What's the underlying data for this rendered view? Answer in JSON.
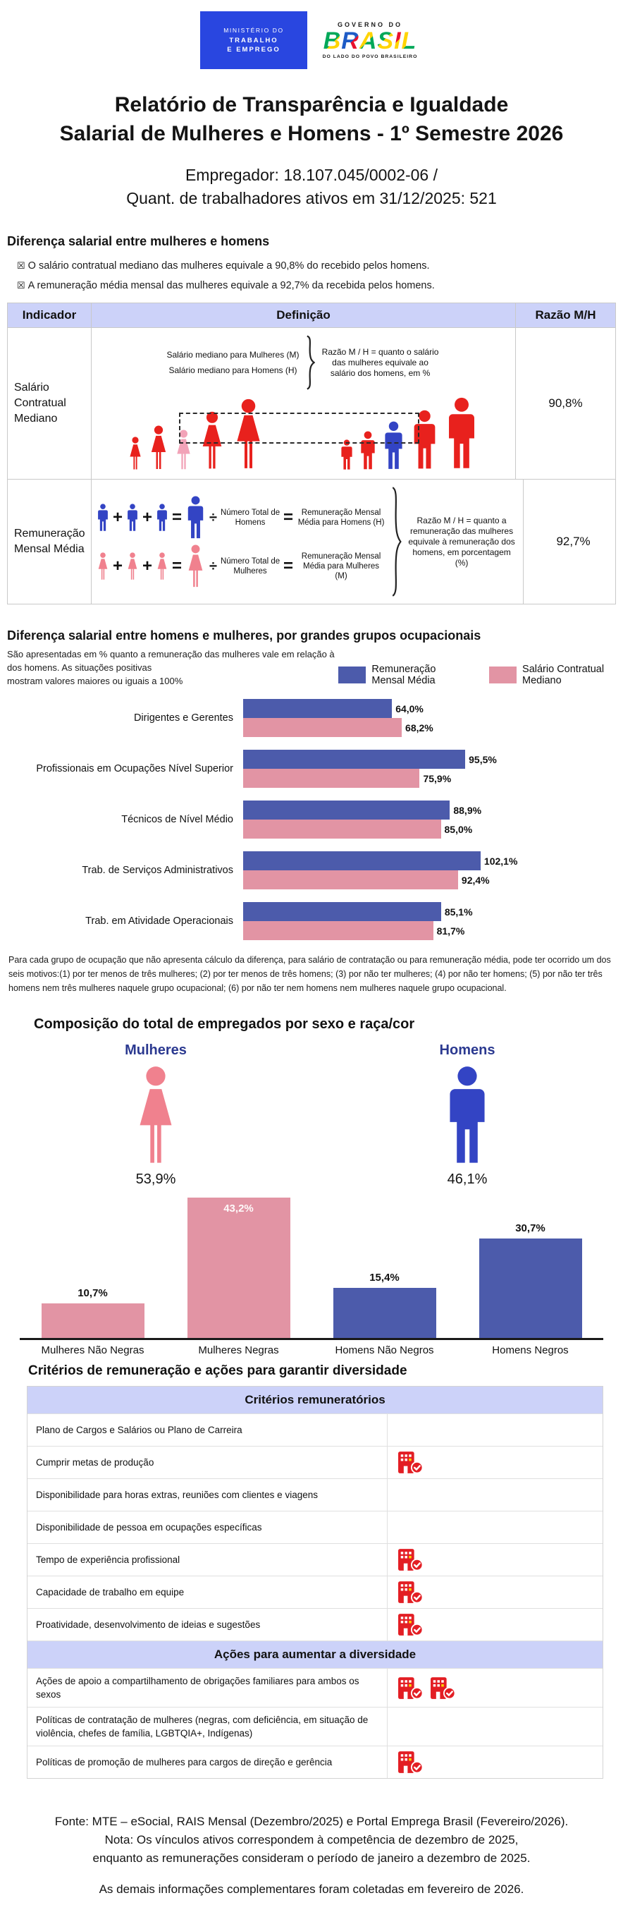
{
  "header": {
    "ministry_logo": {
      "line1": "MINISTÉRIO DO",
      "line2": "TRABALHO",
      "line3": "E EMPREGO"
    },
    "gov_logo": {
      "top": "GOVERNO DO",
      "brand": "BRASIL",
      "bottom": "DO LADO DO POVO BRASILEIRO"
    }
  },
  "title_line1": "Relatório de Transparência e Igualdade",
  "title_line2": "Salarial de Mulheres e Homens - 1º Semestre 2026",
  "employer_line1": "Empregador: 18.107.045/0002-06 /",
  "employer_line2": "Quant. de trabalhadores ativos em 31/12/2025: 521",
  "gap_section": {
    "heading": "Diferença salarial entre mulheres e homens",
    "bullet_glyph": "☒",
    "bullet1": "O salário contratual mediano das mulheres equivale a 90,8% do recebido pelos homens.",
    "bullet2": "A remuneração média mensal das mulheres equivale a 92,7% da recebida pelos homens."
  },
  "indicator_table": {
    "col_indicator": "Indicador",
    "col_definition": "Definição",
    "col_ratio": "Razão M/H",
    "row1": {
      "indicator": "Salário Contratual Mediano",
      "women_line": "Salário mediano para Mulheres (M)",
      "men_line": "Salário mediano para Homens (H)",
      "explanation": "Razão M / H = quanto o salário das mulheres equivale ao salário dos homens, em %",
      "ratio": "90,8%"
    },
    "row2": {
      "indicator": "Remuneração Mensal Média",
      "plus": "+",
      "equals": "=",
      "divide": "÷",
      "men_divisor": "Número Total de Homens",
      "men_result": "Remuneração Mensal Média para Homens (H)",
      "women_divisor": "Número Total de Mulheres",
      "women_result": "Remuneração Mensal Média para Mulheres (M)",
      "explanation": "Razão M / H = quanto a remuneração das mulheres equivale à remuneração dos homens, em porcentagem (%)",
      "ratio": "92,7%"
    }
  },
  "occupational_section": {
    "heading": "Diferença salarial entre homens e mulheres, por grandes grupos ocupacionais",
    "description_line1": "São apresentadas em % quanto a remuneração das mulheres vale em relação à dos homens. As situações positivas",
    "description_line2": "mostram valores maiores ou iguais a 100%",
    "footnote": "Para cada grupo de ocupação que não apresenta cálculo da diferença, para salário de contratação ou para remuneração média, pode ter ocorrido um dos seis motivos:(1) por ter menos de três mulheres; (2) por ter menos de três homens; (3) por não ter mulheres; (4) por não ter homens; (5) por não ter três homens nem três mulheres naquele grupo ocupacional; (6) por não ter nem homens nem mulheres naquele grupo ocupacional."
  },
  "composition_section": {
    "heading": "Composição do total de empregados por sexo e raça/cor",
    "women_label": "Mulheres",
    "women_pct": "53,9%",
    "men_label": "Homens",
    "men_pct": "46,1%"
  },
  "criteria_section": {
    "heading": "Critérios de remuneração e ações para garantir diversidade",
    "remuneration_header": "Critérios remuneratórios",
    "remuneration_rows": [
      {
        "label": "Plano de Cargos e Salários ou Plano de Carreira",
        "icons": 0
      },
      {
        "label": "Cumprir metas de produção",
        "icons": 1
      },
      {
        "label": "Disponibilidade para horas extras, reuniões com clientes e viagens",
        "icons": 0
      },
      {
        "label": "Disponibilidade de pessoa em ocupações específicas",
        "icons": 0
      },
      {
        "label": "Tempo de experiência profissional",
        "icons": 1
      },
      {
        "label": "Capacidade de trabalho em equipe",
        "icons": 1
      },
      {
        "label": "Proatividade, desenvolvimento de ideias e sugestões",
        "icons": 1
      }
    ],
    "diversity_header": "Ações para aumentar a diversidade",
    "diversity_rows": [
      {
        "label": "Ações de apoio a compartilhamento de obrigações familiares para ambos os sexos",
        "icons": 2
      },
      {
        "label": "Políticas de contratação de mulheres (negras, com deficiência, em situação de violência, chefes de família, LGBTQIA+, Indígenas)",
        "icons": 0
      },
      {
        "label": "Políticas de promoção de mulheres para cargos de direção e gerência",
        "icons": 1
      }
    ]
  },
  "footer": {
    "line1": "Fonte: MTE – eSocial, RAIS Mensal (Dezembro/2025) e Portal Emprega Brasil (Fevereiro/2026).",
    "line2": "Nota: Os vínculos ativos correspondem à competência de dezembro de 2025,",
    "line3": "enquanto as remunerações consideram o período de janeiro a dezembro de 2025.",
    "line4": "As demais informações complementares foram coletadas em fevereiro de 2026."
  },
  "colors": {
    "blue_bar": "#4C5BAB",
    "pink_bar": "#E294A4",
    "lavender_header": "#CCD2F9",
    "navy_label": "#2B3990",
    "red_icon": "#E31E24",
    "figure_red": "#E8211D",
    "median_pink": "#F2A3B8",
    "woman_pink": "#F0818E",
    "man_blue": "#3344C4",
    "ministry_blue": "#2946E0"
  },
  "chart_data": [
    {
      "type": "bar",
      "orientation": "horizontal",
      "title": "Diferença salarial entre homens e mulheres, por grandes grupos ocupacionais",
      "categories": [
        "Dirigentes e Gerentes",
        "Profissionais em Ocupações Nível Superior",
        "Técnicos de Nível Médio",
        "Trab. de Serviços Administrativos",
        "Trab. em Atividade Operacionais"
      ],
      "series": [
        {
          "name": "Remuneração Mensal Média",
          "color": "#4C5BAB",
          "values": [
            64.0,
            95.5,
            88.9,
            102.1,
            85.1
          ],
          "labels": [
            "64,0%",
            "95,5%",
            "88,9%",
            "102,1%",
            "85,1%"
          ]
        },
        {
          "name": "Salário Contratual Mediano",
          "color": "#E294A4",
          "values": [
            68.2,
            75.9,
            85.0,
            92.4,
            81.7
          ],
          "labels": [
            "68,2%",
            "75,9%",
            "85,0%",
            "92,4%",
            "81,7%"
          ]
        }
      ],
      "xlim": [
        0,
        110
      ],
      "grid": false,
      "legend_position": "top-right"
    },
    {
      "type": "bar",
      "orientation": "vertical",
      "title": "Composição do total de empregados por sexo e raça/cor",
      "categories": [
        "Mulheres Não Negras",
        "Mulheres Negras",
        "Homens Não Negros",
        "Homens Negros"
      ],
      "values": [
        10.7,
        43.2,
        15.4,
        30.7
      ],
      "labels": [
        "10,7%",
        "43,2%",
        "15,4%",
        "30,7%"
      ],
      "bar_colors": [
        "#E294A4",
        "#E294A4",
        "#4C5BAB",
        "#4C5BAB"
      ],
      "extra_totals": {
        "women_pct": 53.9,
        "men_pct": 46.1
      },
      "ylim": [
        0,
        45
      ],
      "grid": false
    }
  ]
}
